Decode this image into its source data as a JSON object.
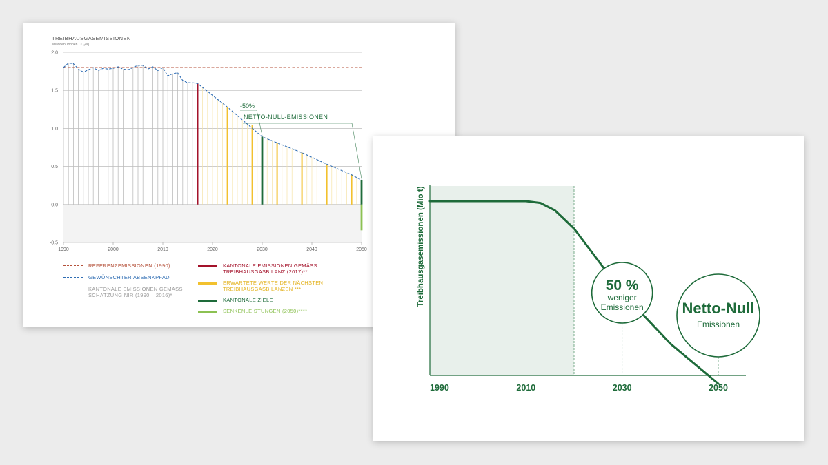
{
  "chart_data": [
    {
      "type": "line",
      "title": "TREIBHAUSGASEMISSIONEN",
      "subtitle": "Millionen Tonnen CO₂eq",
      "xlim": [
        1990,
        2050
      ],
      "ylim": [
        -0.5,
        2.0
      ],
      "x_ticks": [
        1990,
        2000,
        2010,
        2020,
        2030,
        2040,
        2050
      ],
      "y_ticks": [
        {
          "value": -0.5,
          "label": "-0.5"
        },
        {
          "value": 0.0,
          "label": "0.0"
        },
        {
          "value": 0.5,
          "label": "0.5"
        },
        {
          "value": 1.0,
          "label": "1.0"
        },
        {
          "value": 1.5,
          "label": "1.5"
        },
        {
          "value": 2.0,
          "label": "2.0"
        }
      ],
      "series": [
        {
          "name": "REFERENZEMISSIONEN (1990)",
          "color": "#b5523b",
          "style": "dashed",
          "x": [
            1990,
            2050
          ],
          "y": [
            1.8,
            1.8
          ]
        },
        {
          "name": "GEWÜNSCHTER ABSENKPFAD",
          "color": "#2f6db3",
          "style": "dashed",
          "x": [
            1990,
            1991,
            1992,
            1993,
            1994,
            1995,
            1996,
            1997,
            1998,
            1999,
            2000,
            2001,
            2002,
            2003,
            2004,
            2005,
            2006,
            2007,
            2008,
            2009,
            2010,
            2011,
            2012,
            2013,
            2014,
            2015,
            2016,
            2017,
            2023,
            2030,
            2033,
            2038,
            2043,
            2048,
            2050
          ],
          "y": [
            1.8,
            1.86,
            1.85,
            1.78,
            1.74,
            1.77,
            1.8,
            1.76,
            1.79,
            1.78,
            1.79,
            1.81,
            1.78,
            1.77,
            1.8,
            1.83,
            1.83,
            1.78,
            1.81,
            1.76,
            1.8,
            1.69,
            1.72,
            1.73,
            1.63,
            1.6,
            1.6,
            1.59,
            1.28,
            0.89,
            0.81,
            0.68,
            0.53,
            0.39,
            0.32
          ]
        },
        {
          "name": "KANTONALE EMISSIONEN GEMÄSS SCHÄTZUNG NIR (1990 – 2016)*",
          "color": "#bdbdbd",
          "type": "bar",
          "x": [
            1990,
            1991,
            1992,
            1993,
            1994,
            1995,
            1996,
            1997,
            1998,
            1999,
            2000,
            2001,
            2002,
            2003,
            2004,
            2005,
            2006,
            2007,
            2008,
            2009,
            2010,
            2011,
            2012,
            2013,
            2014,
            2015,
            2016
          ],
          "y": [
            1.8,
            1.86,
            1.85,
            1.78,
            1.74,
            1.77,
            1.8,
            1.76,
            1.79,
            1.78,
            1.79,
            1.81,
            1.78,
            1.77,
            1.8,
            1.83,
            1.83,
            1.78,
            1.81,
            1.76,
            1.8,
            1.69,
            1.72,
            1.73,
            1.63,
            1.6,
            1.6
          ]
        },
        {
          "name": "KANTONALE EMISSIONEN GEMÄSS TREIBHAUSGASBILANZ (2017)**",
          "color": "#a3122a",
          "type": "bar",
          "x": [
            2017
          ],
          "y": [
            1.59
          ]
        },
        {
          "name": "ERWARTETE WERTE DER NÄCHSTEN TREIBHAUSGASBILANZEN ***",
          "color": "#f2c12e",
          "type": "bar",
          "x": [
            2023,
            2028,
            2033,
            2038,
            2043,
            2048
          ],
          "y": [
            1.28,
            1.04,
            0.81,
            0.68,
            0.53,
            0.39
          ]
        },
        {
          "name": "KANTONALE ZIELE",
          "color": "#1e6b3a",
          "type": "bar",
          "x": [
            2030,
            2050
          ],
          "y": [
            0.89,
            0.32
          ]
        },
        {
          "name": "SENKENLEISTUNGEN (2050)****",
          "color": "#8cc152",
          "type": "bar",
          "x": [
            2050
          ],
          "y": [
            -0.34
          ]
        }
      ],
      "annotations": [
        {
          "text": "-50%",
          "x": 2030,
          "y": 0.89
        },
        {
          "text": "NETTO-NULL-EMISSIONEN",
          "x": 2050,
          "y": 0.32
        }
      ],
      "grid": true,
      "legend": "bottom"
    },
    {
      "type": "line",
      "ylabel": "Treibhausgasemissionen (Mio t)",
      "x_ticks": [
        1990,
        2010,
        2030,
        2050
      ],
      "series": [
        {
          "color": "#1e6b3a",
          "x": [
            1990,
            2000,
            2010,
            2013,
            2016,
            2020,
            2030,
            2040,
            2050
          ],
          "y": [
            1.0,
            1.0,
            1.0,
            0.99,
            0.95,
            0.85,
            0.5,
            0.22,
            0.0
          ]
        }
      ],
      "shaded_region": {
        "x_from": 1990,
        "x_to": 2020
      },
      "annotations": [
        {
          "big": "50 %",
          "line1": "weniger",
          "line2": "Emissionen",
          "x": 2030
        },
        {
          "big": "Netto-Null",
          "line1": "Emissionen",
          "x": 2050
        }
      ]
    }
  ]
}
